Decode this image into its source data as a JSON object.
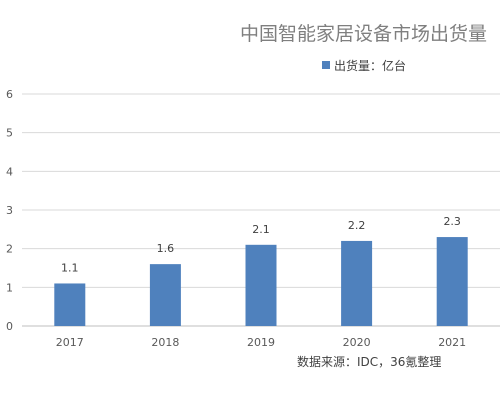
{
  "chart_data": {
    "type": "bar",
    "title": "中国智能家居设备市场出货量",
    "categories": [
      "2017",
      "2018",
      "2019",
      "2020",
      "2021"
    ],
    "series": [
      {
        "name": "出货量：亿台",
        "values": [
          1.1,
          1.6,
          2.1,
          2.2,
          2.3
        ],
        "color": "#4f81bd"
      }
    ],
    "data_labels": [
      "1.1",
      "1.6",
      "2.1",
      "2.2",
      "2.3"
    ],
    "y_ticks": [
      "0",
      "1",
      "2",
      "3",
      "4",
      "5",
      "6"
    ],
    "ylim": [
      0,
      6
    ],
    "grid": true,
    "legend_position": "top-right",
    "source_note": "数据来源：IDC，36氪整理",
    "colors": {
      "bar": "#4f81bd",
      "grid": "#d9d9d9",
      "axis": "#bfbfbf",
      "text": "#595959"
    }
  }
}
